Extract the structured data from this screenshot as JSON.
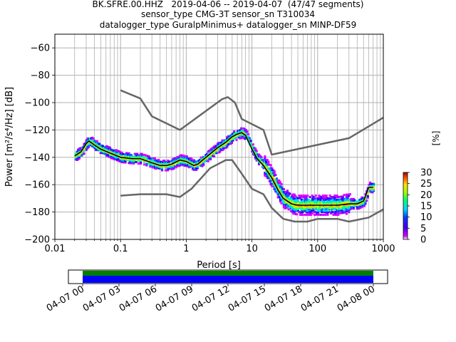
{
  "title_lines": [
    "BK.SFRE.00.HHZ   2019-04-06 -- 2019-04-07  (47/47 segments)",
    "sensor_type CMG-3T sensor_sn T310034",
    "datalogger_type GuralpMinimus+ datalogger_sn MINP-DF59"
  ],
  "chart_data": {
    "type": "line",
    "title": "BK.SFRE.00.HHZ   2019-04-06 -- 2019-04-07  (47/47 segments)",
    "xlabel": "Period [s]",
    "ylabel": "Power [m²/s⁴/Hz] [dB]",
    "xscale": "log",
    "xlim": [
      0.01,
      1000
    ],
    "ylim": [
      -200,
      -50
    ],
    "grid": true,
    "x_tick_labels": [
      "0.01",
      "0.1",
      "1",
      "10",
      "100",
      "1000"
    ],
    "x_ticks": [
      0.01,
      0.1,
      1,
      10,
      100,
      1000
    ],
    "y_ticks": [
      -60,
      -80,
      -100,
      -120,
      -140,
      -160,
      -180,
      -200
    ],
    "y_tick_labels": [
      "−60",
      "−80",
      "−100",
      "−120",
      "−140",
      "−160",
      "−180",
      "−200"
    ],
    "colorbar": {
      "label": "[%]",
      "range": [
        0,
        30
      ],
      "ticks": [
        "0",
        "5",
        "10",
        "15",
        "20",
        "25",
        "30"
      ]
    },
    "series": [
      {
        "color": "#000000",
        "x": [
          0.02,
          0.025,
          0.03,
          0.033,
          0.04,
          0.05,
          0.07,
          0.1,
          0.15,
          0.2,
          0.3,
          0.4,
          0.5,
          0.6,
          0.8,
          1,
          1.3,
          1.5,
          2,
          3,
          4,
          5,
          6,
          7,
          8,
          10,
          12,
          15,
          20,
          25,
          30,
          40,
          50,
          70,
          100,
          150,
          200,
          300,
          400,
          500,
          600,
          700
        ],
        "y": [
          -139,
          -136,
          -130,
          -128,
          -131,
          -134,
          -137,
          -140,
          -141,
          -141,
          -144,
          -146,
          -146,
          -145,
          -142,
          -143,
          -146,
          -145,
          -140,
          -133,
          -129,
          -125,
          -123,
          -122,
          -124,
          -134,
          -141,
          -146,
          -155,
          -164,
          -170,
          -174,
          -175,
          -175,
          -175,
          -175,
          -175,
          -174,
          -174,
          -172,
          -162,
          -162
        ]
      },
      {
        "color": "#666666",
        "x": [
          0.1,
          0.2,
          0.3,
          0.8,
          3.5,
          4.3,
          5.5,
          7,
          15,
          20,
          300,
          1000
        ],
        "y": [
          -91,
          -97,
          -110,
          -120,
          -97.5,
          -96,
          -100,
          -112,
          -120,
          -138,
          -126,
          -111
        ]
      },
      {
        "color": "#666666",
        "x": [
          0.1,
          0.2,
          0.5,
          0.8,
          1.2,
          2.3,
          4,
          5,
          7,
          10,
          15,
          20,
          30,
          45,
          70,
          100,
          200,
          300,
          600,
          1000
        ],
        "y": [
          -168,
          -167,
          -167,
          -169,
          -163,
          -148,
          -142,
          -142,
          -152,
          -163,
          -167,
          -177,
          -185,
          -187,
          -187,
          -185,
          -185,
          -187,
          -184,
          -178
        ]
      }
    ],
    "time_coverage": {
      "tick_labels": [
        "04-07 00",
        "04-07 03",
        "04-07 06",
        "04-07 09",
        "04-07 12",
        "04-07 15",
        "04-07 18",
        "04-07 21",
        "04-08 00"
      ],
      "coverage_colors": [
        "#008000",
        "#0000ff"
      ]
    }
  }
}
